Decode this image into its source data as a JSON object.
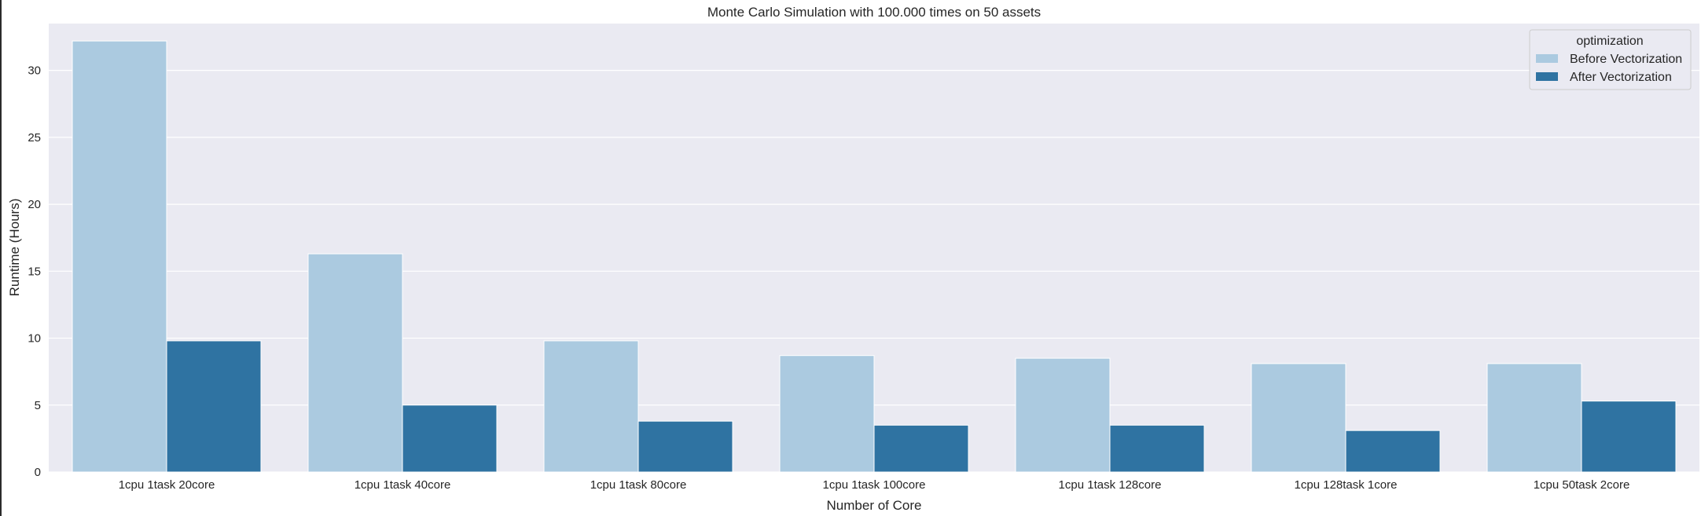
{
  "chart_data": {
    "type": "bar",
    "title": "Monte Carlo Simulation with 100.000 times on 50 assets",
    "xlabel": "Number of Core",
    "ylabel": "Runtime (Hours)",
    "ylim": [
      0,
      33.5
    ],
    "yticks": [
      0,
      5,
      10,
      15,
      20,
      25,
      30
    ],
    "grid": true,
    "legend": {
      "title": "optimization",
      "placement": "top-right"
    },
    "categories": [
      "1cpu 1task 20core",
      "1cpu 1task 40core",
      "1cpu 1task 80core",
      "1cpu 1task 100core",
      "1cpu 1task 128core",
      "1cpu 128task 1core",
      "1cpu 50task 2core"
    ],
    "series": [
      {
        "name": "Before Vectorization",
        "color": "#abcae0",
        "values": [
          32.2,
          16.3,
          9.8,
          8.7,
          8.5,
          8.1,
          8.1
        ]
      },
      {
        "name": "After Vectorization",
        "color": "#2f73a2",
        "values": [
          9.8,
          5.0,
          3.8,
          3.5,
          3.5,
          3.1,
          5.3
        ]
      }
    ],
    "colors": {
      "plot_background": "#eaeaf2",
      "grid": "#ffffff",
      "text": "#262626",
      "legend_background": "#eaeaf2",
      "legend_border": "#cccccc"
    }
  }
}
